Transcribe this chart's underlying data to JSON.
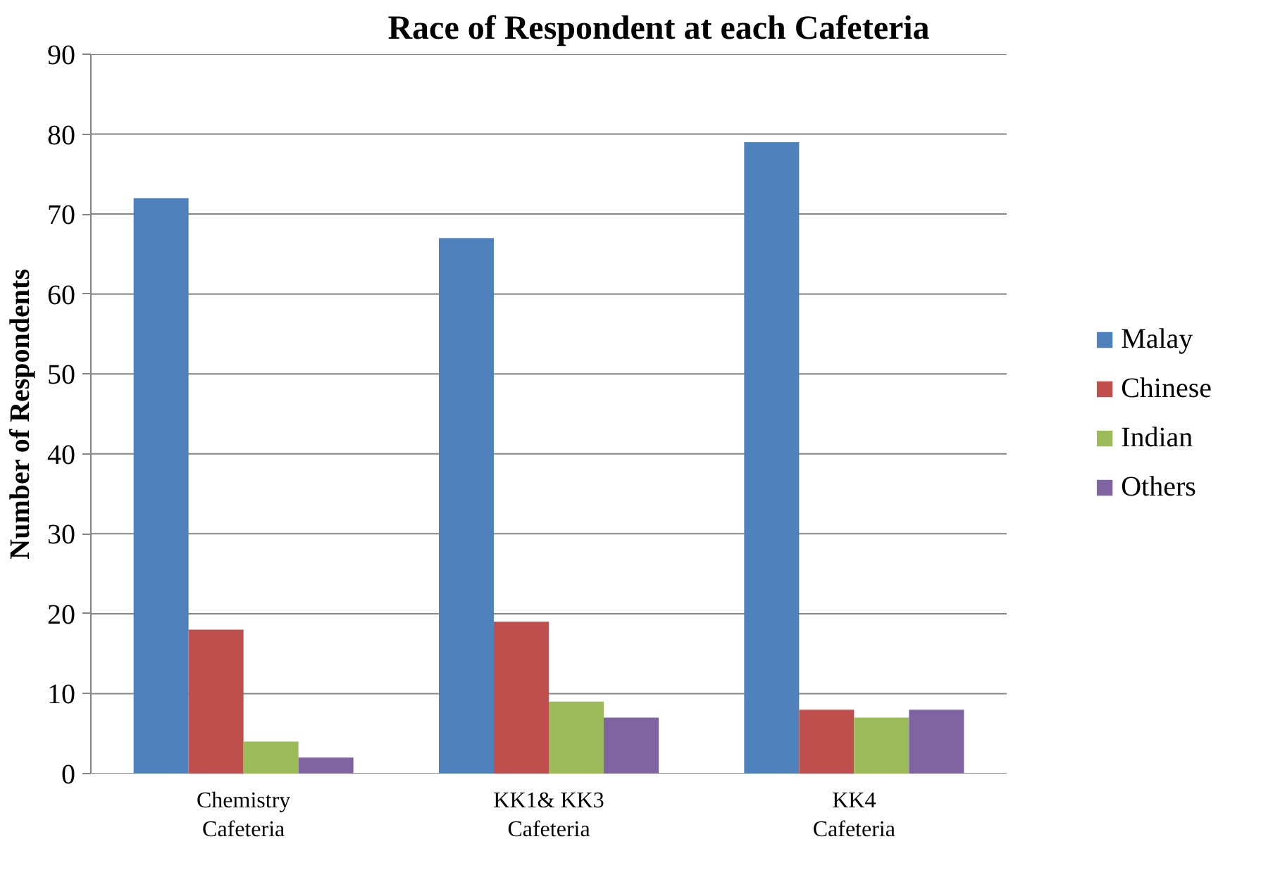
{
  "chart_data": {
    "type": "bar",
    "title": "Race of Respondent at each Cafeteria",
    "ylabel": "Number of Respondents",
    "categories": [
      "Chemistry\nCafeteria",
      "KK1& KK3\nCafeteria",
      "KK4\nCafeteria"
    ],
    "series": [
      {
        "name": "Malay",
        "color": "#4f81bd",
        "values": [
          72,
          67,
          79
        ]
      },
      {
        "name": "Chinese",
        "color": "#c0504d",
        "values": [
          18,
          19,
          8
        ]
      },
      {
        "name": "Indian",
        "color": "#9bbb59",
        "values": [
          4,
          9,
          7
        ]
      },
      {
        "name": "Others",
        "color": "#8064a2",
        "values": [
          2,
          7,
          8
        ]
      }
    ],
    "ylim": [
      0,
      90
    ],
    "yticks": [
      0,
      10,
      20,
      30,
      40,
      50,
      60,
      70,
      80,
      90
    ],
    "grid": "y",
    "legend": "right"
  }
}
